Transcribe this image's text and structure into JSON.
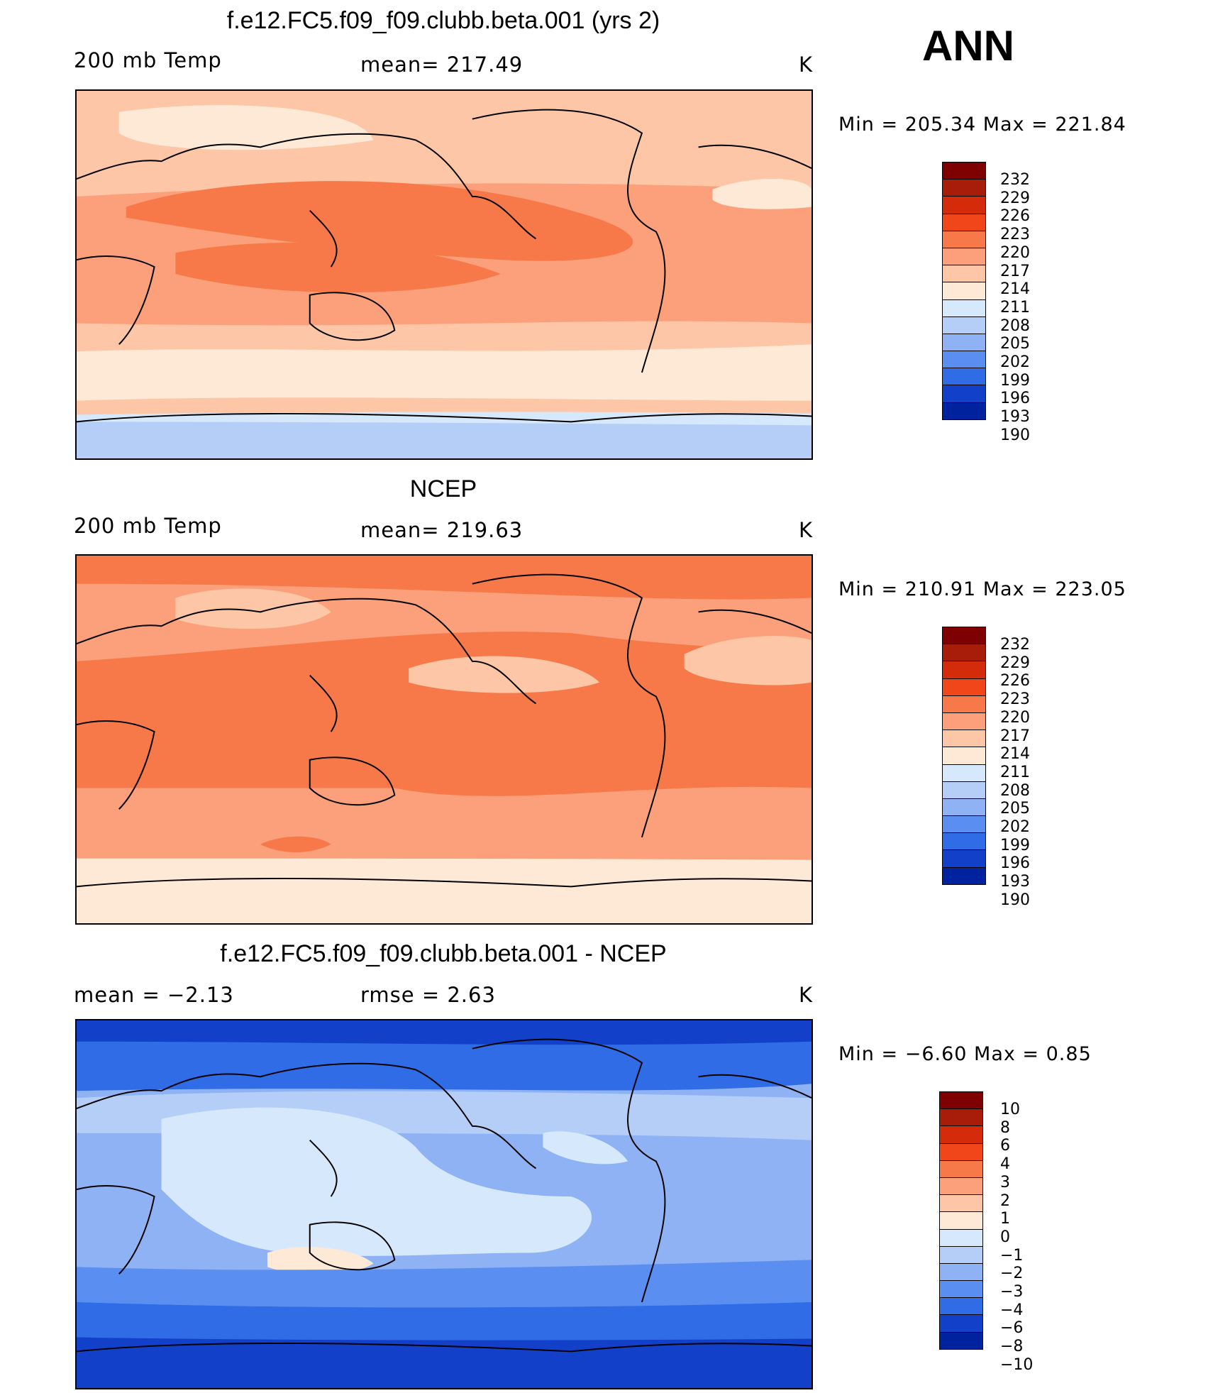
{
  "season": "ANN",
  "panels": [
    {
      "title": "f.e12.FC5.f09_f09.clubb.beta.001 (yrs 2)",
      "left_label": "200 mb Temp",
      "center_label": "mean= 217.49",
      "units": "K",
      "minmax": "Min = 205.34 Max = 221.84",
      "colorbar_labels": [
        "232",
        "229",
        "226",
        "223",
        "220",
        "217",
        "214",
        "211",
        "208",
        "205",
        "202",
        "199",
        "196",
        "193",
        "190"
      ],
      "colorbar_colors": [
        "#7f0000",
        "#a81c0a",
        "#d42c0a",
        "#f0461a",
        "#f7794a",
        "#fba07a",
        "#fcc6a7",
        "#fde9d6",
        "#d6e8fb",
        "#b4cef7",
        "#8fb2f5",
        "#5a8ef0",
        "#2f6ce6",
        "#1340c8",
        "#00229e"
      ]
    },
    {
      "title": "NCEP",
      "left_label": "200 mb Temp",
      "center_label": "mean= 219.63",
      "units": "K",
      "minmax": "Min = 210.91 Max = 223.05",
      "colorbar_labels": [
        "232",
        "229",
        "226",
        "223",
        "220",
        "217",
        "214",
        "211",
        "208",
        "205",
        "202",
        "199",
        "196",
        "193",
        "190"
      ],
      "colorbar_colors": [
        "#7f0000",
        "#a81c0a",
        "#d42c0a",
        "#f0461a",
        "#f7794a",
        "#fba07a",
        "#fcc6a7",
        "#fde9d6",
        "#d6e8fb",
        "#b4cef7",
        "#8fb2f5",
        "#5a8ef0",
        "#2f6ce6",
        "#1340c8",
        "#00229e"
      ]
    },
    {
      "title": "f.e12.FC5.f09_f09.clubb.beta.001 - NCEP",
      "left_label": "mean = −2.13",
      "center_label": "rmse = 2.63",
      "units": "K",
      "minmax": "Min = −6.60 Max = 0.85",
      "colorbar_labels": [
        "10",
        "8",
        "6",
        "4",
        "3",
        "2",
        "1",
        "0",
        "−1",
        "−2",
        "−3",
        "−4",
        "−6",
        "−8",
        "−10"
      ],
      "colorbar_colors": [
        "#7f0000",
        "#a81c0a",
        "#d42c0a",
        "#f0461a",
        "#f7794a",
        "#fba07a",
        "#fcc6a7",
        "#fde9d6",
        "#d6e8fb",
        "#b4cef7",
        "#8fb2f5",
        "#5a8ef0",
        "#2f6ce6",
        "#1340c8",
        "#00229e"
      ]
    }
  ]
}
